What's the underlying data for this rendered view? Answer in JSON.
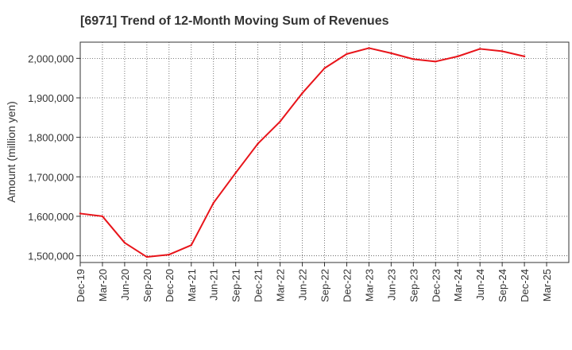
{
  "chart_data": {
    "type": "line",
    "title": "[6971]  Trend of 12-Month Moving Sum of Revenues",
    "ylabel": "Amount (million yen)",
    "xlabel": "",
    "categories": [
      "Dec-19",
      "Mar-20",
      "Jun-20",
      "Sep-20",
      "Dec-20",
      "Mar-21",
      "Jun-21",
      "Sep-21",
      "Dec-21",
      "Mar-22",
      "Jun-22",
      "Sep-22",
      "Dec-22",
      "Mar-23",
      "Jun-23",
      "Sep-23",
      "Dec-23",
      "Mar-24",
      "Jun-24",
      "Sep-24",
      "Dec-24",
      "Mar-25"
    ],
    "y_ticks": [
      "1,500,000",
      "1,600,000",
      "1,700,000",
      "1,800,000",
      "1,900,000",
      "2,000,000"
    ],
    "y_tick_values": [
      1500000,
      1600000,
      1700000,
      1800000,
      1900000,
      2000000
    ],
    "ylim": [
      1483000,
      2041000
    ],
    "grid": true,
    "series": [
      {
        "color": "#e8141a",
        "values": [
          1607000,
          1600000,
          1533000,
          1497000,
          1503000,
          1527000,
          1634000,
          1710000,
          1784000,
          1840000,
          1912000,
          1975000,
          2011000,
          2026000,
          2013000,
          1998000,
          1992000,
          2005000,
          2024000,
          2018000,
          2005000,
          null
        ]
      }
    ]
  }
}
